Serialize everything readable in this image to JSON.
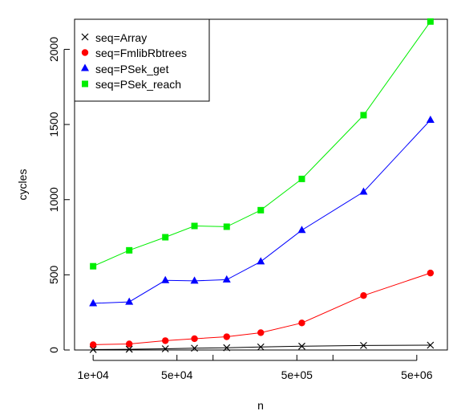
{
  "chart_data": {
    "type": "line",
    "title": "",
    "xlabel": "n",
    "ylabel": "cycles",
    "x_scale": "log",
    "x": [
      10000,
      20000,
      40000,
      70000,
      130000,
      250000,
      550000,
      1800000,
      6500000
    ],
    "xlim": [
      7000,
      9000000
    ],
    "ylim": [
      0,
      2200
    ],
    "x_ticks": [
      {
        "value": 10000,
        "label": "1e+04"
      },
      {
        "value": 50000,
        "label": "5e+04"
      },
      {
        "value": 500000,
        "label": "5e+05"
      },
      {
        "value": 5000000,
        "label": "5e+06"
      }
    ],
    "x_minor_ticks": [
      100000,
      1000000
    ],
    "y_ticks": [
      {
        "value": 0,
        "label": "0"
      },
      {
        "value": 500,
        "label": "500"
      },
      {
        "value": 1000,
        "label": "1000"
      },
      {
        "value": 1500,
        "label": "1500"
      },
      {
        "value": 2000,
        "label": "2000"
      }
    ],
    "grid": false,
    "legend_position": "top-left",
    "series": [
      {
        "name": "seq=Array",
        "color": "#000000",
        "marker": "cross",
        "values": [
          3,
          5,
          8,
          12,
          15,
          20,
          25,
          30,
          32
        ]
      },
      {
        "name": "seq=FmlibRbtrees",
        "color": "#ff0000",
        "marker": "circle",
        "values": [
          35,
          40,
          62,
          75,
          88,
          115,
          180,
          362,
          512
        ]
      },
      {
        "name": "seq=PSek_get",
        "color": "#0000ff",
        "marker": "triangle",
        "values": [
          310,
          320,
          463,
          460,
          468,
          588,
          797,
          1052,
          1530
        ]
      },
      {
        "name": "seq=PSek_reach",
        "color": "#00ee00",
        "marker": "square",
        "values": [
          557,
          663,
          750,
          825,
          820,
          930,
          1138,
          1562,
          2185
        ]
      }
    ]
  }
}
